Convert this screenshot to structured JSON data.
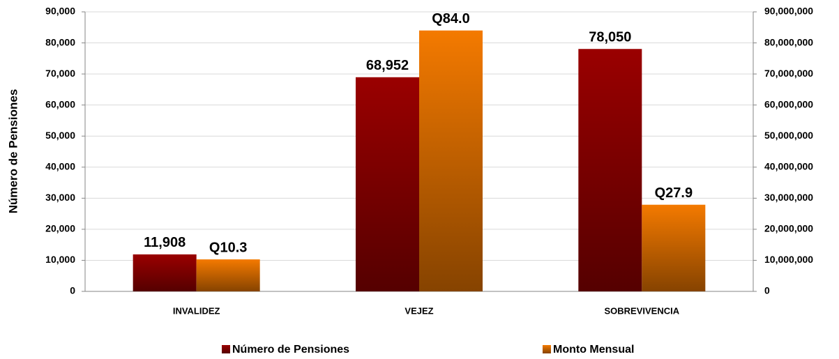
{
  "chart_data": {
    "type": "bar",
    "y_axis_label": "Número de Pensiones",
    "categories": [
      "INVALIDEZ",
      "VEJEZ",
      "SOBREVIVENCIA"
    ],
    "series": [
      {
        "name": "Número de Pensiones",
        "color": "#9a0000",
        "values": [
          11908,
          68952,
          78050
        ],
        "value_labels": [
          "11,908",
          "68,952",
          "78,050"
        ]
      },
      {
        "name": "Monto Mensual",
        "color": "#f47a00",
        "axis": "y2",
        "values": [
          10300000,
          84000000,
          27900000
        ],
        "value_labels": [
          "Q10.3",
          "Q84.0",
          "Q27.9"
        ]
      }
    ],
    "ylim": [
      0,
      90000
    ],
    "yticks": [
      0,
      {
        "value": 10000,
        "label": "10,000"
      },
      {
        "value": 20000,
        "label": "20,000"
      },
      {
        "value": 30000,
        "label": "30,000"
      },
      {
        "value": 40000,
        "label": "40,000"
      },
      {
        "value": 50000,
        "label": "50,000"
      },
      {
        "value": 60000,
        "label": "60,000"
      },
      {
        "value": 70000,
        "label": "70,000"
      },
      {
        "value": 80000,
        "label": "80,000"
      },
      {
        "value": 90000,
        "label": "90,000"
      }
    ],
    "y2lim": [
      0,
      90000000
    ],
    "y2ticks": [
      0,
      {
        "value": 10000000,
        "label": "10,000,000"
      },
      {
        "value": 20000000,
        "label": "20,000,000"
      },
      {
        "value": 30000000,
        "label": "30,000,000"
      },
      {
        "value": 40000000,
        "label": "40,000,000"
      },
      {
        "value": 50000000,
        "label": "50,000,000"
      },
      {
        "value": 60000000,
        "label": "60,000,000"
      },
      {
        "value": 70000000,
        "label": "70,000,000"
      },
      {
        "value": 80000000,
        "label": "80,000,000"
      },
      {
        "value": 90000000,
        "label": "90,000,000"
      }
    ],
    "grid": true,
    "legend": "bottom"
  }
}
